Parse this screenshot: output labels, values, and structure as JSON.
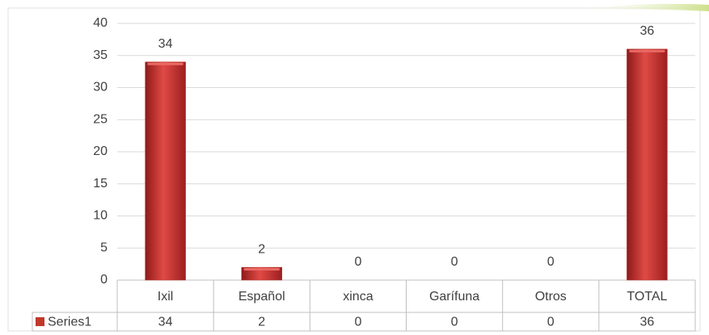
{
  "chart_data": {
    "type": "bar",
    "categories": [
      "Ixil",
      "Español",
      "xinca",
      "Garífuna",
      "Otros",
      "TOTAL"
    ],
    "series": [
      {
        "name": "Series1",
        "color": "#c0392b",
        "values": [
          34,
          2,
          0,
          0,
          0,
          36
        ]
      }
    ],
    "ylim": [
      0,
      40
    ],
    "yticks": [
      0,
      5,
      10,
      15,
      20,
      25,
      30,
      35,
      40
    ],
    "grid": true,
    "data_labels": true,
    "data_table": true
  }
}
